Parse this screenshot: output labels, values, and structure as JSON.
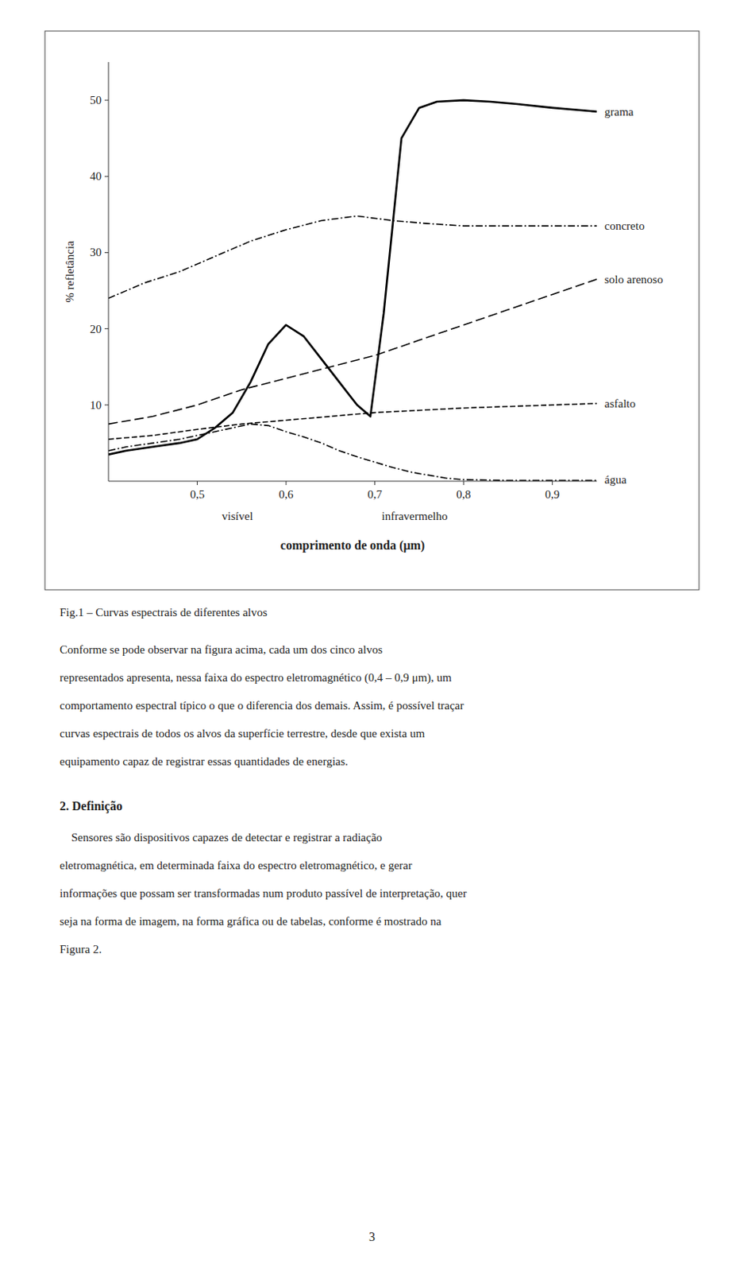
{
  "chart_data": {
    "type": "line",
    "y_label": "% refletância",
    "x_label": "comprimento de onda (μm)",
    "x_sublabels": [
      "visível",
      "infravermelho"
    ],
    "xlim": [
      0.4,
      0.95
    ],
    "ylim": [
      0,
      55
    ],
    "xticks": [
      {
        "value": 0.5,
        "label": "0,5"
      },
      {
        "value": 0.6,
        "label": "0,6"
      },
      {
        "value": 0.7,
        "label": "0,7"
      },
      {
        "value": 0.8,
        "label": "0,8"
      },
      {
        "value": 0.9,
        "label": "0,9"
      }
    ],
    "yticks": [
      10,
      20,
      30,
      40,
      50
    ],
    "grid": false,
    "series": [
      {
        "name": "grama",
        "color": "#000000",
        "line_style": "solid",
        "x": [
          0.4,
          0.42,
          0.45,
          0.48,
          0.5,
          0.52,
          0.54,
          0.56,
          0.58,
          0.6,
          0.62,
          0.64,
          0.66,
          0.68,
          0.695,
          0.71,
          0.73,
          0.75,
          0.77,
          0.8,
          0.83,
          0.86,
          0.9,
          0.95
        ],
        "values": [
          3.5,
          4.0,
          4.5,
          5.0,
          5.5,
          7.0,
          9.0,
          13.0,
          18.0,
          20.5,
          19.0,
          16.0,
          13.0,
          10.0,
          8.5,
          22.0,
          45.0,
          49.0,
          49.8,
          50.0,
          49.8,
          49.5,
          49.0,
          48.5
        ]
      },
      {
        "name": "concreto",
        "color": "#000000",
        "line_style": "dashdot",
        "x": [
          0.4,
          0.44,
          0.48,
          0.52,
          0.56,
          0.6,
          0.64,
          0.68,
          0.72,
          0.76,
          0.8,
          0.85,
          0.9,
          0.95
        ],
        "values": [
          24.0,
          26.0,
          27.5,
          29.5,
          31.5,
          33.0,
          34.2,
          34.8,
          34.2,
          33.8,
          33.5,
          33.5,
          33.5,
          33.5
        ]
      },
      {
        "name": "solo arenoso",
        "color": "#000000",
        "line_style": "longdash",
        "x": [
          0.4,
          0.45,
          0.5,
          0.55,
          0.6,
          0.65,
          0.7,
          0.75,
          0.8,
          0.85,
          0.9,
          0.95
        ],
        "values": [
          7.5,
          8.5,
          10.0,
          12.0,
          13.5,
          15.0,
          16.5,
          18.5,
          20.5,
          22.5,
          24.5,
          26.5
        ]
      },
      {
        "name": "asfalto",
        "color": "#000000",
        "line_style": "dashed",
        "x": [
          0.4,
          0.45,
          0.5,
          0.55,
          0.6,
          0.65,
          0.7,
          0.75,
          0.8,
          0.85,
          0.9,
          0.95
        ],
        "values": [
          5.5,
          6.0,
          6.8,
          7.5,
          8.0,
          8.5,
          9.0,
          9.3,
          9.6,
          9.8,
          10.0,
          10.2
        ]
      },
      {
        "name": "água",
        "color": "#000000",
        "line_style": "dashdot",
        "x": [
          0.4,
          0.42,
          0.45,
          0.48,
          0.5,
          0.52,
          0.54,
          0.56,
          0.58,
          0.6,
          0.62,
          0.64,
          0.66,
          0.68,
          0.7,
          0.72,
          0.74,
          0.76,
          0.78,
          0.8,
          0.85,
          0.9,
          0.95
        ],
        "values": [
          4.0,
          4.5,
          5.0,
          5.5,
          6.0,
          6.5,
          7.0,
          7.5,
          7.3,
          6.5,
          5.8,
          5.0,
          4.0,
          3.2,
          2.5,
          1.8,
          1.2,
          0.8,
          0.4,
          0.2,
          0.1,
          0.1,
          0.1
        ]
      }
    ]
  },
  "page": {
    "caption": "Fig.1 – Curvas espectrais de diferentes alvos",
    "paragraph_1": [
      "Conforme se pode observar na figura acima, cada um dos cinco alvos",
      "representados apresenta, nessa faixa do espectro eletromagnético (0,4 – 0,9 μm), um",
      "comportamento espectral típico o que o diferencia dos demais. Assim, é possível traçar",
      "curvas espectrais de todos os alvos da superfície terrestre, desde que exista um",
      "equipamento capaz de registrar essas quantidades de energias."
    ],
    "heading": "2. Definição",
    "paragraph_2": [
      "    Sensores são dispositivos capazes de detectar e registrar a radiação",
      "eletromagnética, em determinada faixa do espectro eletromagnético, e gerar",
      "informações que possam ser transformadas num produto passível de interpretação, quer",
      "seja na forma de imagem, na forma gráfica ou de tabelas, conforme é mostrado na",
      "Figura 2."
    ],
    "page_number": "3"
  }
}
